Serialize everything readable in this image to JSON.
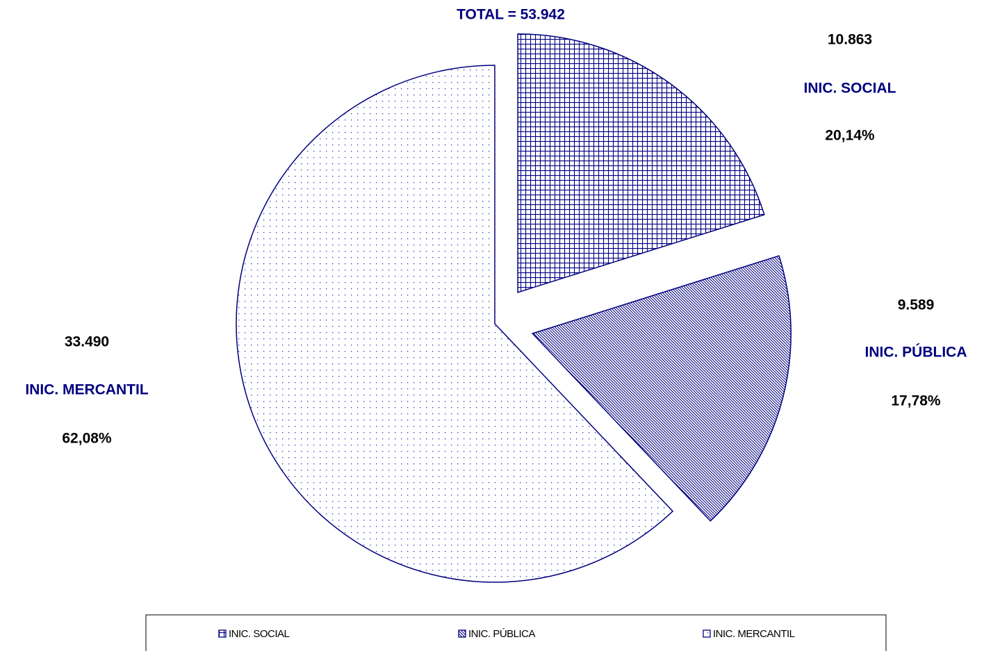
{
  "chart_data": {
    "type": "pie",
    "title": "TOTAL = 53.942",
    "categories": [
      "INIC. SOCIAL",
      "INIC. PÚBLICA",
      "INIC. MERCANTIL"
    ],
    "values": [
      10863,
      9589,
      33490
    ],
    "value_labels": [
      "10.863",
      "9.589",
      "33.490"
    ],
    "percentages": [
      20.14,
      17.78,
      62.08
    ],
    "percentage_labels": [
      "20,14%",
      "17,78%",
      "62,08%"
    ],
    "color": "#000080",
    "exploded": [
      true,
      true,
      false
    ],
    "legend": "bottom"
  }
}
